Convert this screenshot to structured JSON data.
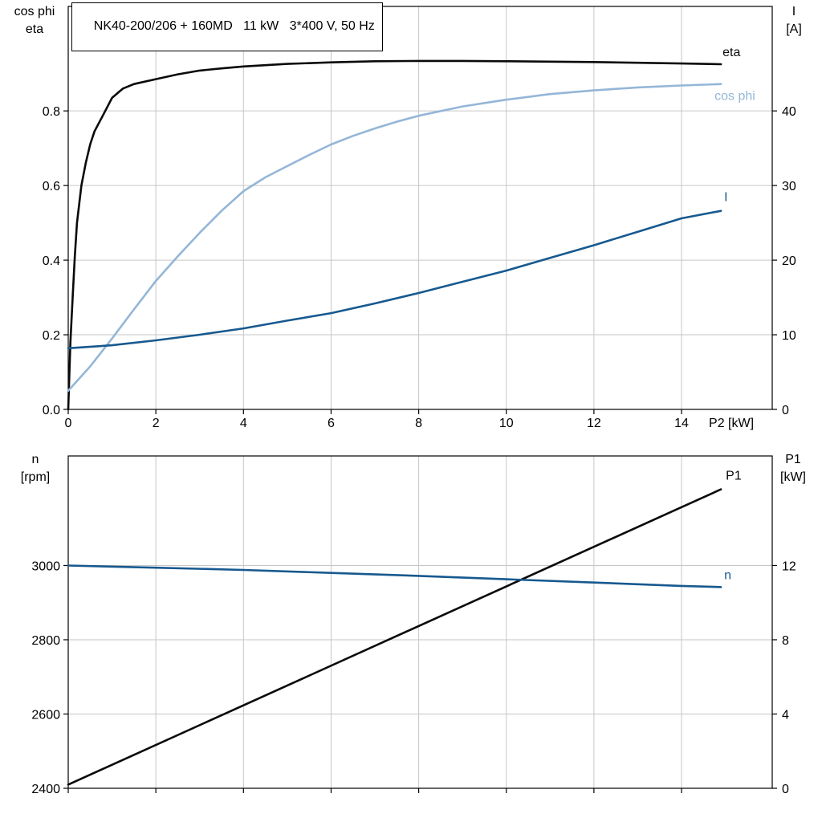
{
  "colors": {
    "black": "#0a0a0a",
    "light_blue": "#94b6d7",
    "dark_blue": "#17598f",
    "grid": "#c6c6c6",
    "axis": "#000000",
    "tick_label": "#000000",
    "background": "#ffffff"
  },
  "chart_data": [
    {
      "id": "top",
      "type": "line",
      "title": "NK40-200/206 + 160MD   11 kW   3*400 V, 50 Hz",
      "grid": true,
      "legend_position": "end-of-line-labels",
      "x_axis": {
        "label": "P2 [kW]",
        "min": 0,
        "max": 16.07,
        "ticks": [
          0,
          2,
          4,
          6,
          8,
          10,
          12,
          14
        ],
        "tick_labels": [
          "0",
          "2",
          "4",
          "6",
          "8",
          "10",
          "12",
          "14"
        ]
      },
      "y_left": {
        "label_lines": [
          "cos phi",
          "eta"
        ],
        "min": 0,
        "max": 1.08,
        "ticks": [
          0,
          0.2,
          0.4,
          0.6,
          0.8
        ],
        "decimals": 1
      },
      "y_right": {
        "label_lines": [
          "I",
          "[A]"
        ],
        "min": 0,
        "max": 54,
        "ticks": [
          0,
          10,
          20,
          30,
          40
        ],
        "decimals": 0
      },
      "series": [
        {
          "name": "eta",
          "axis": "left",
          "color": "black",
          "label_dx": 2,
          "label_dy": -10,
          "points": [
            [
              0,
              0
            ],
            [
              0.05,
              0.18
            ],
            [
              0.1,
              0.3
            ],
            [
              0.15,
              0.41
            ],
            [
              0.2,
              0.5
            ],
            [
              0.3,
              0.6
            ],
            [
              0.4,
              0.66
            ],
            [
              0.5,
              0.71
            ],
            [
              0.6,
              0.745
            ],
            [
              0.8,
              0.79
            ],
            [
              1,
              0.835
            ],
            [
              1.25,
              0.86
            ],
            [
              1.5,
              0.872
            ],
            [
              2,
              0.885
            ],
            [
              2.5,
              0.898
            ],
            [
              3,
              0.908
            ],
            [
              3.5,
              0.914
            ],
            [
              4,
              0.919
            ],
            [
              5,
              0.926
            ],
            [
              6,
              0.93
            ],
            [
              7,
              0.933
            ],
            [
              8,
              0.934
            ],
            [
              9,
              0.934
            ],
            [
              10,
              0.933
            ],
            [
              11,
              0.932
            ],
            [
              12,
              0.931
            ],
            [
              13,
              0.929
            ],
            [
              14,
              0.927
            ],
            [
              14.9,
              0.925
            ]
          ]
        },
        {
          "name": "cos phi",
          "axis": "left",
          "color": "light_blue",
          "label_dx": -8,
          "label_dy": 20,
          "points": [
            [
              0,
              0.05
            ],
            [
              0.5,
              0.115
            ],
            [
              1,
              0.19
            ],
            [
              1.5,
              0.268
            ],
            [
              2,
              0.344
            ],
            [
              2.5,
              0.41
            ],
            [
              3,
              0.473
            ],
            [
              3.5,
              0.532
            ],
            [
              4,
              0.585
            ],
            [
              4.5,
              0.622
            ],
            [
              5,
              0.652
            ],
            [
              5.5,
              0.682
            ],
            [
              6,
              0.71
            ],
            [
              6.5,
              0.733
            ],
            [
              7,
              0.753
            ],
            [
              7.5,
              0.771
            ],
            [
              8,
              0.787
            ],
            [
              9,
              0.812
            ],
            [
              10,
              0.83
            ],
            [
              11,
              0.845
            ],
            [
              12,
              0.855
            ],
            [
              13,
              0.863
            ],
            [
              14,
              0.868
            ],
            [
              14.9,
              0.872
            ]
          ]
        },
        {
          "name": "I",
          "axis": "right",
          "color": "dark_blue",
          "label_dx": 4,
          "label_dy": -12,
          "points": [
            [
              0,
              8.2
            ],
            [
              1,
              8.6
            ],
            [
              2,
              9.25
            ],
            [
              3,
              10.0
            ],
            [
              4,
              10.85
            ],
            [
              5,
              11.9
            ],
            [
              6,
              12.9
            ],
            [
              7,
              14.2
            ],
            [
              8,
              15.6
            ],
            [
              9,
              17.1
            ],
            [
              10,
              18.6
            ],
            [
              11,
              20.3
            ],
            [
              12,
              22.0
            ],
            [
              13,
              23.8
            ],
            [
              14,
              25.6
            ],
            [
              14.9,
              26.6
            ]
          ]
        }
      ]
    },
    {
      "id": "bottom",
      "type": "line",
      "title": "",
      "grid": true,
      "x_axis": {
        "label": "",
        "min": 0,
        "max": 16.07,
        "ticks": [
          0,
          2,
          4,
          6,
          8,
          10,
          12,
          14
        ]
      },
      "y_left": {
        "label_lines": [
          "n",
          "[rpm]"
        ],
        "min": 2400,
        "max": 3295,
        "ticks": [
          2400,
          2600,
          2800,
          3000
        ],
        "decimals": 0
      },
      "y_right": {
        "label_lines": [
          "P1",
          "[kW]"
        ],
        "min": 0,
        "max": 17.9,
        "ticks": [
          0,
          4,
          8,
          12
        ],
        "decimals": 0
      },
      "series": [
        {
          "name": "P1",
          "axis": "right",
          "color": "black",
          "label_dx": 6,
          "label_dy": -12,
          "points": [
            [
              0,
              0.2
            ],
            [
              14.9,
              16.1
            ]
          ]
        },
        {
          "name": "n",
          "axis": "left",
          "color": "dark_blue",
          "label_dx": 4,
          "label_dy": -10,
          "points": [
            [
              0,
              3000
            ],
            [
              2,
              2994
            ],
            [
              4,
              2988
            ],
            [
              6,
              2980
            ],
            [
              8,
              2972
            ],
            [
              10,
              2963
            ],
            [
              12,
              2954
            ],
            [
              14,
              2945
            ],
            [
              14.9,
              2942
            ]
          ]
        }
      ]
    }
  ]
}
